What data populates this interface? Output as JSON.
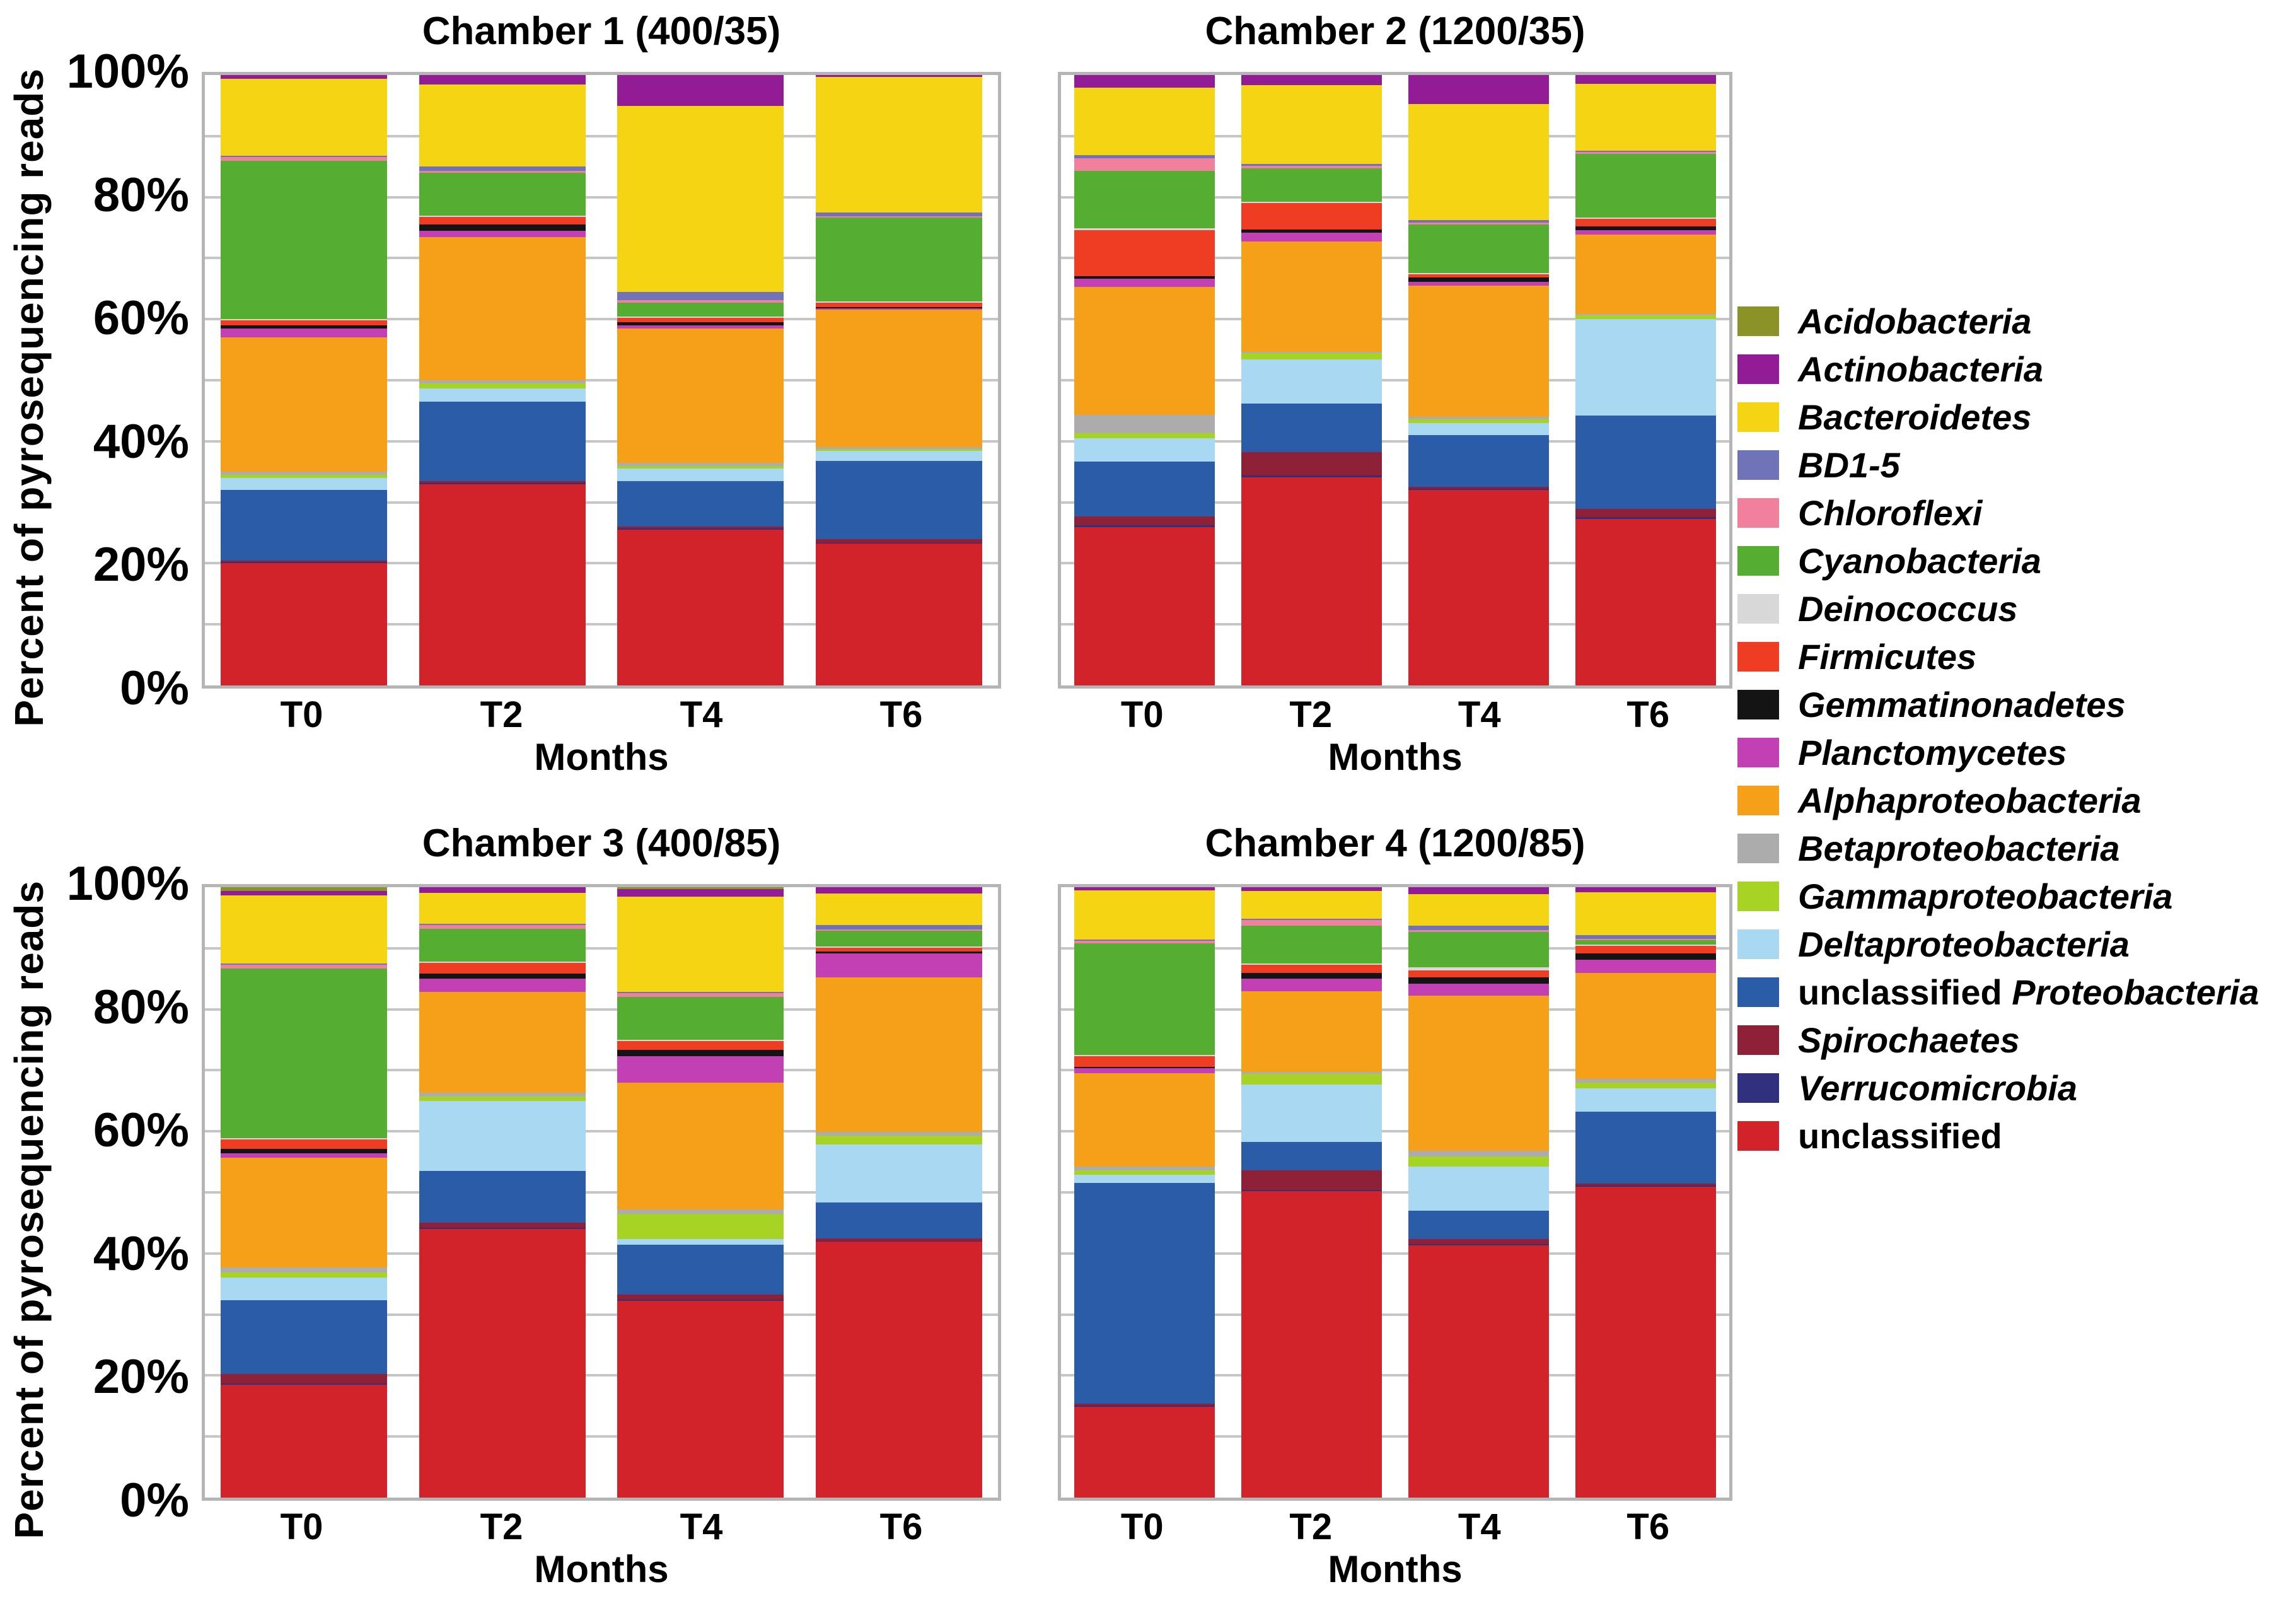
{
  "chart_data": {
    "type": "bar",
    "stacked": true,
    "unit": "percent",
    "ylabel": "Percent  of pyrosequencing reads",
    "xlabel": "Months",
    "categories": [
      "T0",
      "T2",
      "T4",
      "T6"
    ],
    "ylim": [
      0,
      100
    ],
    "ytick_step_labeled": 20,
    "ytick_suffix": "%",
    "gridline_step": 10,
    "grid_color": "#c6c6c6",
    "frame_color": "#b5b5b5",
    "background_color": "#ffffff",
    "stack_order": "taxa listed bottom-to-top of each bar; legend shows reverse order",
    "taxa": [
      {
        "name": "unclassified",
        "color": "#d2232a",
        "label_parts": [
          {
            "text": "unclassified",
            "italic": false
          }
        ]
      },
      {
        "name": "Verrucomicrobia",
        "color": "#30307e",
        "label_parts": [
          {
            "text": "Verrucomicrobia",
            "italic": true
          }
        ]
      },
      {
        "name": "Spirochaetes",
        "color": "#8e2038",
        "label_parts": [
          {
            "text": "Spirochaetes",
            "italic": true
          }
        ]
      },
      {
        "name": "unclassified Proteobacteria",
        "color": "#2a5ca7",
        "label_parts": [
          {
            "text": "unclassified ",
            "italic": false
          },
          {
            "text": "Proteobacteria",
            "italic": true
          }
        ]
      },
      {
        "name": "Deltaproteobacteria",
        "color": "#a9d8f2",
        "label_parts": [
          {
            "text": "Deltaproteobacteria",
            "italic": true
          }
        ]
      },
      {
        "name": "Gammaproteobacteria",
        "color": "#a6d324",
        "label_parts": [
          {
            "text": "Gammaproteobacteria",
            "italic": true
          }
        ]
      },
      {
        "name": "Betaproteobacteria",
        "color": "#acacac",
        "label_parts": [
          {
            "text": "Betaproteobacteria",
            "italic": true
          }
        ]
      },
      {
        "name": "Alphaproteobacteria",
        "color": "#f6a01a",
        "label_parts": [
          {
            "text": "Alphaproteobacteria",
            "italic": true
          }
        ]
      },
      {
        "name": "Planctomycetes",
        "color": "#c23fb4",
        "label_parts": [
          {
            "text": "Planctomycetes",
            "italic": true
          }
        ]
      },
      {
        "name": "Gemmatinonadetes",
        "color": "#141414",
        "label_parts": [
          {
            "text": "Gemmatinonadetes",
            "italic": true
          }
        ]
      },
      {
        "name": "Firmicutes",
        "color": "#ee3d23",
        "label_parts": [
          {
            "text": "Firmicutes",
            "italic": true
          }
        ]
      },
      {
        "name": "Deinococcus",
        "color": "#d8d8d8",
        "label_parts": [
          {
            "text": "Deinococcus",
            "italic": true
          }
        ]
      },
      {
        "name": "Cyanobacteria",
        "color": "#55ad32",
        "label_parts": [
          {
            "text": "Cyanobacteria",
            "italic": true
          }
        ]
      },
      {
        "name": "Chloroflexi",
        "color": "#f0809b",
        "label_parts": [
          {
            "text": "Chloroflexi",
            "italic": true
          }
        ]
      },
      {
        "name": "BD1-5",
        "color": "#7173b8",
        "label_parts": [
          {
            "text": "BD1-5",
            "italic": true
          }
        ]
      },
      {
        "name": "Bacteroidetes",
        "color": "#f5d414",
        "label_parts": [
          {
            "text": "Bacteroidetes",
            "italic": true
          }
        ]
      },
      {
        "name": "Actinobacteria",
        "color": "#921b96",
        "label_parts": [
          {
            "text": "Actinobacteria",
            "italic": true
          }
        ]
      },
      {
        "name": "Acidobacteria",
        "color": "#8a9228",
        "label_parts": [
          {
            "text": "Acidobacteria",
            "italic": true
          }
        ]
      }
    ],
    "panels": [
      {
        "title": "Chamber 1 (400/35)",
        "values": [
          [
            20.0,
            0.2,
            0.3,
            11.5,
            2.0,
            0.5,
            0.5,
            22.0,
            1.5,
            0.5,
            0.8,
            0.2,
            26.0,
            0.6,
            0.2,
            12.6,
            0.6,
            0
          ],
          [
            33.0,
            0.2,
            0.3,
            13.0,
            2.2,
            0.8,
            0.5,
            23.5,
            1.0,
            1.0,
            1.3,
            0.2,
            7.0,
            0.3,
            0.7,
            13.5,
            1.5,
            0
          ],
          [
            25.5,
            0.2,
            0.3,
            7.5,
            2.0,
            0.5,
            0.5,
            22.0,
            0.5,
            0.5,
            0.7,
            0.2,
            2.3,
            0.4,
            1.4,
            30.5,
            5.0,
            0
          ],
          [
            23.2,
            0.2,
            0.6,
            12.8,
            1.6,
            0.3,
            0.4,
            22.5,
            0.2,
            0.2,
            0.7,
            0.2,
            13.8,
            0.2,
            0.6,
            22.2,
            0.3,
            0
          ]
        ]
      },
      {
        "title": "Chamber 2 (1200/35)",
        "values": [
          [
            25.9,
            0.3,
            1.5,
            9.0,
            3.8,
            0.8,
            3.0,
            21.0,
            1.3,
            0.5,
            7.5,
            0.3,
            9.4,
            2.1,
            0.5,
            11.1,
            2.0,
            0
          ],
          [
            34.1,
            0.3,
            3.8,
            8.0,
            7.2,
            1.0,
            0.3,
            18.0,
            1.5,
            0.5,
            4.3,
            0.2,
            5.5,
            0.4,
            0.3,
            13.0,
            1.6,
            0
          ],
          [
            32.0,
            0.2,
            0.3,
            8.5,
            2.0,
            0.6,
            0.4,
            21.5,
            0.6,
            0.7,
            0.6,
            0.2,
            7.9,
            0.3,
            0.5,
            19.0,
            4.7,
            0
          ],
          [
            27.3,
            0.3,
            1.3,
            15.3,
            15.8,
            0.6,
            0.3,
            13.0,
            0.7,
            0.6,
            1.3,
            0.2,
            10.4,
            0.3,
            0.2,
            11.0,
            1.4,
            0
          ]
        ]
      },
      {
        "title": "Chamber 3 (400/85)",
        "values": [
          [
            18.5,
            0.2,
            1.5,
            12.1,
            3.8,
            0.8,
            0.8,
            18.0,
            0.7,
            0.7,
            1.6,
            0.2,
            27.8,
            0.6,
            0.2,
            11.2,
            0.7,
            0.6
          ],
          [
            44.0,
            0.2,
            0.8,
            8.5,
            11.5,
            0.7,
            0.6,
            16.6,
            2.1,
            0.9,
            1.7,
            0.2,
            5.4,
            0.6,
            0.2,
            5.1,
            0.9,
            0
          ],
          [
            32.2,
            0.2,
            0.9,
            8.1,
            1.0,
            4.1,
            0.7,
            20.8,
            4.3,
            1.1,
            1.4,
            0.2,
            7.0,
            0.7,
            0.2,
            15.6,
            1.2,
            0.3
          ],
          [
            41.9,
            0.2,
            0.4,
            5.9,
            9.5,
            1.4,
            0.6,
            25.3,
            4.0,
            0.3,
            0.6,
            0.2,
            2.6,
            0.2,
            0.7,
            5.2,
            1.0,
            0
          ]
        ]
      },
      {
        "title": "Chamber 4 (1200/85)",
        "values": [
          [
            14.9,
            0.2,
            0.3,
            36.2,
            1.3,
            0.7,
            0.6,
            15.3,
            0.9,
            0.2,
            1.7,
            0.2,
            18.3,
            0.4,
            0.2,
            8.1,
            0.5,
            0
          ],
          [
            50.2,
            0.2,
            3.2,
            4.7,
            9.4,
            1.7,
            0.3,
            13.3,
            2.0,
            1.0,
            1.3,
            0.2,
            6.2,
            0.9,
            0.2,
            4.6,
            0.6,
            0
          ],
          [
            41.3,
            0.2,
            0.9,
            4.6,
            7.2,
            1.7,
            0.9,
            25.4,
            2.0,
            1.0,
            1.2,
            0.5,
            5.8,
            0.3,
            0.7,
            5.2,
            1.1,
            0
          ],
          [
            50.9,
            0.2,
            0.4,
            11.7,
            3.9,
            0.9,
            0.6,
            17.4,
            2.1,
            1.1,
            1.2,
            0.2,
            0.7,
            0.2,
            0.7,
            7.0,
            0.8,
            0
          ]
        ]
      }
    ],
    "legend_position": "right"
  }
}
